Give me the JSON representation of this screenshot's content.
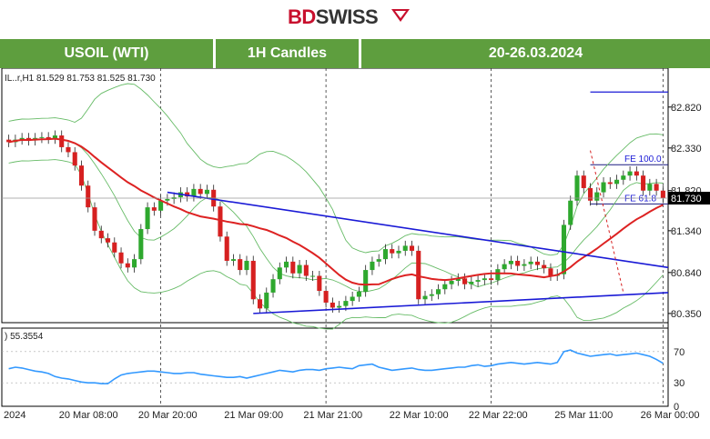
{
  "brand": {
    "name_part1": "BD",
    "name_part2": "SWISS"
  },
  "header": {
    "symbol": "USOIL (WTI)",
    "timeframe": "1H Candles",
    "date_range": "20-26.03.2024"
  },
  "chart_data": [
    {
      "type": "candlestick",
      "info_label": "IL..r,H1  81.529 81.753 81.525 81.730",
      "current_price": {
        "label": "81.730",
        "value": 81.73
      },
      "y_ticks": [
        "82.820",
        "82.330",
        "81.820",
        "81.340",
        "80.840",
        "80.350"
      ],
      "y_tick_values": [
        82.82,
        82.33,
        81.82,
        81.34,
        80.84,
        80.35
      ],
      "ylim": [
        80.24,
        83.22
      ],
      "x_ticks": [
        "2024",
        "20 Mar 08:00",
        "20 Mar 20:00",
        "21 Mar 09:00",
        "21 Mar 21:00",
        "22 Mar 10:00",
        "22 Mar 22:00",
        "25 Mar 11:00",
        "26 Mar 00:00"
      ],
      "x_tick_index": [
        0,
        12,
        24,
        37,
        49,
        62,
        74,
        87,
        100
      ],
      "vertical_separators_index": [
        23,
        48,
        73,
        99
      ],
      "annotations": [
        {
          "label": "FE 100.0",
          "value": 82.13
        },
        {
          "label": "FE 61.8",
          "value": 81.66
        }
      ],
      "upper_level": 83.0,
      "candles_close_approx": [
        82.4,
        82.43,
        82.45,
        82.42,
        82.45,
        82.46,
        82.44,
        82.48,
        82.34,
        82.28,
        82.12,
        81.88,
        81.62,
        81.34,
        81.25,
        81.2,
        81.08,
        80.95,
        80.9,
        81.0,
        81.36,
        81.62,
        81.58,
        81.7,
        81.72,
        81.74,
        81.8,
        81.75,
        81.84,
        81.78,
        81.83,
        81.63,
        81.27,
        80.98,
        81.0,
        80.87,
        80.98,
        80.52,
        80.41,
        80.6,
        80.76,
        80.9,
        80.97,
        80.83,
        80.93,
        80.8,
        80.8,
        80.62,
        80.48,
        80.42,
        80.44,
        80.5,
        80.55,
        80.61,
        80.87,
        80.97,
        81.0,
        81.12,
        81.07,
        81.1,
        81.16,
        81.1,
        80.52,
        80.56,
        80.58,
        80.64,
        80.7,
        80.74,
        80.77,
        80.7,
        80.73,
        80.75,
        80.77,
        80.75,
        80.88,
        80.94,
        80.98,
        80.92,
        80.94,
        80.97,
        80.93,
        80.89,
        80.8,
        80.82,
        81.41,
        81.7,
        82.0,
        81.85,
        81.7,
        81.8,
        81.92,
        81.9,
        81.95,
        82.0,
        82.05,
        82.0,
        81.82,
        81.9,
        81.82,
        81.73
      ],
      "indicator": {
        "label": "55.3554",
        "ticks": [
          "70",
          "30",
          "0"
        ],
        "tick_values": [
          70,
          30,
          0
        ],
        "range": [
          0,
          100
        ],
        "values_approx": [
          48,
          50,
          49,
          47,
          45,
          44,
          42,
          38,
          36,
          35,
          33,
          31,
          30,
          30,
          29,
          29,
          35,
          40,
          42,
          43,
          44,
          45,
          45,
          44,
          43,
          42,
          42,
          43,
          43,
          41,
          40,
          39,
          38,
          37,
          37,
          38,
          36,
          38,
          40,
          42,
          44,
          46,
          45,
          44,
          46,
          47,
          47,
          46,
          48,
          49,
          50,
          49,
          48,
          52,
          53,
          54,
          50,
          48,
          46,
          47,
          48,
          49,
          47,
          46,
          46,
          47,
          48,
          49,
          50,
          50,
          52,
          53,
          51,
          52,
          54,
          55,
          56,
          55,
          54,
          55,
          56,
          55,
          54,
          56,
          70,
          72,
          68,
          66,
          64,
          65,
          66,
          67,
          65,
          66,
          67,
          68,
          66,
          64,
          60,
          55
        ]
      },
      "colors": {
        "bull": "#2ea82e",
        "bear": "#d62020",
        "ma_red": "#dd2222",
        "bands": "#66bb66",
        "trendline": "#1a1ad6",
        "rsi": "#3399ff"
      }
    }
  ]
}
